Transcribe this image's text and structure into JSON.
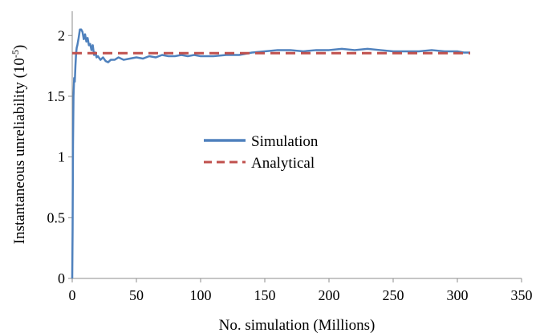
{
  "chart_data": {
    "type": "line",
    "xlabel": "No. simulation (Millions)",
    "ylabel": "Instantaneous unreliability (10",
    "ylabel_superscript": "-5",
    "ylabel_close": ")",
    "xlim": [
      0,
      350
    ],
    "ylim": [
      0,
      2.2
    ],
    "xticks": [
      "0",
      "50",
      "100",
      "150",
      "200",
      "250",
      "300",
      "350"
    ],
    "xtick_values": [
      0,
      50,
      100,
      150,
      200,
      250,
      300,
      350
    ],
    "yticks": [
      "0",
      "0.5",
      "1",
      "1.5",
      "2"
    ],
    "ytick_values": [
      0,
      0.5,
      1,
      1.5,
      2
    ],
    "grid": false,
    "legend_position": "center",
    "series": [
      {
        "name": "Simulation",
        "color": "#4f81bd",
        "style": "solid",
        "x": [
          0,
          0.3,
          0.6,
          1,
          1.5,
          2,
          2.5,
          3,
          3.5,
          4,
          5,
          6,
          7,
          8,
          9,
          10,
          11,
          12,
          13,
          14,
          15,
          16,
          17,
          18,
          19,
          20,
          22,
          24,
          26,
          28,
          30,
          33,
          36,
          40,
          45,
          50,
          55,
          60,
          65,
          70,
          75,
          80,
          85,
          90,
          95,
          100,
          110,
          120,
          130,
          140,
          150,
          160,
          170,
          180,
          190,
          200,
          210,
          220,
          230,
          240,
          250,
          260,
          270,
          280,
          290,
          300,
          305,
          310
        ],
        "y": [
          0,
          0.4,
          1.1,
          1.5,
          1.65,
          1.62,
          1.75,
          1.85,
          1.9,
          1.92,
          1.98,
          2.05,
          2.05,
          2.03,
          1.97,
          2.01,
          1.95,
          1.98,
          1.92,
          1.93,
          1.88,
          1.92,
          1.84,
          1.86,
          1.82,
          1.83,
          1.8,
          1.82,
          1.79,
          1.78,
          1.8,
          1.8,
          1.82,
          1.8,
          1.81,
          1.82,
          1.81,
          1.83,
          1.82,
          1.84,
          1.83,
          1.83,
          1.84,
          1.83,
          1.84,
          1.83,
          1.83,
          1.84,
          1.84,
          1.86,
          1.87,
          1.88,
          1.88,
          1.87,
          1.88,
          1.88,
          1.89,
          1.88,
          1.89,
          1.88,
          1.87,
          1.87,
          1.87,
          1.88,
          1.87,
          1.87,
          1.86,
          1.86
        ]
      },
      {
        "name": "Analytical",
        "color": "#c0504d",
        "style": "dashed",
        "x": [
          0,
          310
        ],
        "y": [
          1.855,
          1.855
        ]
      }
    ]
  }
}
